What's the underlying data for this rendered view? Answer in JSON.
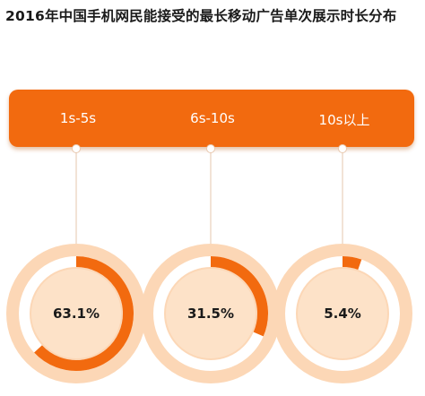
{
  "title": "2016年中国手机网民能接受的最长移动广告单次展示时长分布",
  "colors": {
    "band": "#f26a0f",
    "outer_circle": "#fcd7b6",
    "ring_track": "#ffffff",
    "ring_fill": "#f26a0f",
    "inner_circle": "#fde2c8"
  },
  "chart_data": {
    "type": "pie",
    "title": "2016年中国手机网民能接受的最长移动广告单次展示时长分布",
    "categories": [
      "1s-5s",
      "6s-10s",
      "10s以上"
    ],
    "values": [
      63.1,
      31.5,
      5.4
    ],
    "value_labels": [
      "63.1%",
      "31.5%",
      "5.4%"
    ]
  }
}
